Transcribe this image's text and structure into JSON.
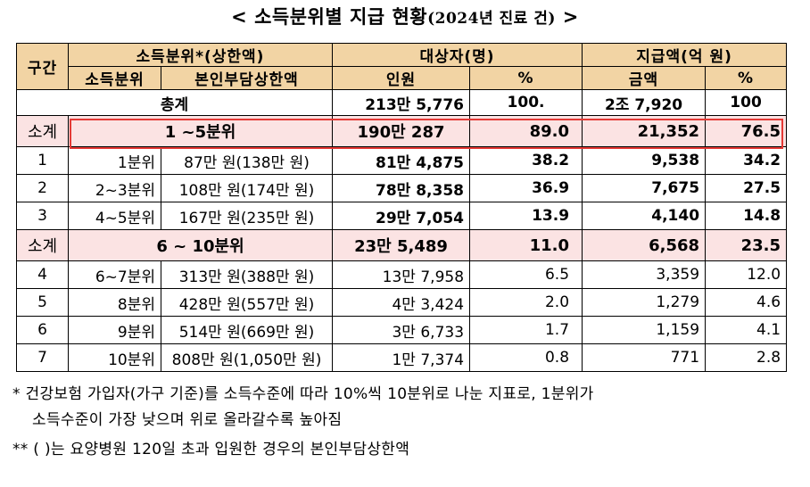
{
  "title": {
    "main": "< 소득분위별 지급 현황",
    "year": "(2024년 진료 건)",
    "close": " >"
  },
  "header": {
    "row1": {
      "section": "구간",
      "income_group": "소득분위*(상한액)",
      "subjects": "대상자(명)",
      "amount": "지급액(억 원)"
    },
    "row2": {
      "bracket": "소득분위",
      "cap": "본인부담상한액",
      "people": "인원",
      "pct1": "%",
      "amount": "금액",
      "pct2": "%"
    }
  },
  "total": {
    "label": "총계",
    "people": "213만 5,776",
    "pct1": "100.",
    "amount": "2조 7,920",
    "pct2": "100"
  },
  "groups": [
    {
      "subtotal": {
        "label": "소계",
        "bracket": "1 ~5분위",
        "people": "190만 287",
        "pct1": "89.0",
        "amount": "21,352",
        "pct2": "76.5"
      },
      "rows": [
        {
          "section": "1",
          "bracket": "1분위",
          "cap": "87만 원(138만 원)",
          "people": "81만 4,875",
          "pct1": "38.2",
          "amount": "9,538",
          "pct2": "34.2"
        },
        {
          "section": "2",
          "bracket": "2~3분위",
          "cap": "108만 원(174만 원)",
          "people": "78만 8,358",
          "pct1": "36.9",
          "amount": "7,675",
          "pct2": "27.5"
        },
        {
          "section": "3",
          "bracket": "4~5분위",
          "cap": "167만 원(235만 원)",
          "people": "29만 7,054",
          "pct1": "13.9",
          "amount": "4,140",
          "pct2": "14.8"
        }
      ]
    },
    {
      "subtotal": {
        "label": "소계",
        "bracket": "6 ~ 10분위",
        "people": "23만 5,489",
        "pct1": "11.0",
        "amount": "6,568",
        "pct2": "23.5"
      },
      "rows": [
        {
          "section": "4",
          "bracket": "6~7분위",
          "cap": "313만 원(388만 원)",
          "people": "13만 7,958",
          "pct1": "6.5",
          "amount": "3,359",
          "pct2": "12.0"
        },
        {
          "section": "5",
          "bracket": "8분위",
          "cap": "428만 원(557만 원)",
          "people": "4만 3,424",
          "pct1": "2.0",
          "amount": "1,279",
          "pct2": "4.6"
        },
        {
          "section": "6",
          "bracket": "9분위",
          "cap": "514만 원(669만 원)",
          "people": "3만 6,733",
          "pct1": "1.7",
          "amount": "1,159",
          "pct2": "4.1"
        },
        {
          "section": "7",
          "bracket": "10분위",
          "cap": "808만 원(1,050만 원)",
          "people": "1만 7,374",
          "pct1": "0.8",
          "amount": "771",
          "pct2": "2.8"
        }
      ]
    }
  ],
  "notes": {
    "n1_line1": "* 건강보험 가입자(가구 기준)를 소득수준에 따라 10%씩 10분위로 나눈 지표로, 1분위가",
    "n1_line2": "소득수준이 가장 낮으며 위로 올라갈수록 높아짐",
    "n2": "** (   )는 요양병원 120일 초과 입원한 경우의 본인부담상한액"
  },
  "colors": {
    "header_bg": "#f2d4a4",
    "subtotal_bg": "#fbe3e3",
    "highlight_border": "#e53935"
  }
}
